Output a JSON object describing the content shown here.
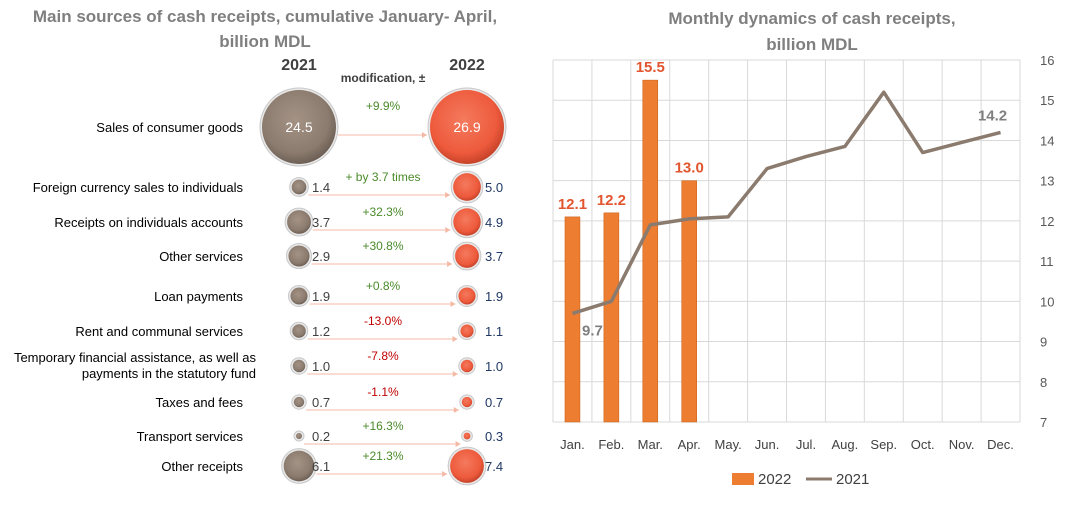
{
  "colors": {
    "grey_title": "#7f7f7f",
    "bubble_2021": "#8b7b6e",
    "bubble_2022": "#ee5a3c",
    "bar_2022": "#ed7d31",
    "line_2021": "#8b7b6e",
    "positive_change": "#4a8a2a",
    "negative_change": "#c00000",
    "value_2022_text": "#1f3864",
    "highlight_label": "#e2552f",
    "grid": "#d9d9d9"
  },
  "left": {
    "title_line1": "Main sources of cash receipts, cumulative January- April,",
    "title_line2": "billion MDL",
    "col_2021": "2021",
    "col_2022": "2022",
    "col_mod": "modification, ±",
    "rows": [
      {
        "label": [
          "Sales of consumer goods"
        ],
        "v2021": 24.5,
        "v2022": 26.9,
        "v2021_text": "24.5",
        "v2022_text": "26.9",
        "change": "+9.9%",
        "sign": "pos",
        "big": true
      },
      {
        "label": [
          "Foreign currency sales to individuals"
        ],
        "v2021": 1.4,
        "v2022": 5.0,
        "v2021_text": "1.4",
        "v2022_text": "5.0",
        "change": "+ by 3.7 times",
        "sign": "pos"
      },
      {
        "label": [
          "Receipts on individuals accounts"
        ],
        "v2021": 3.7,
        "v2022": 4.9,
        "v2021_text": "3.7",
        "v2022_text": "4.9",
        "change": "+32.3%",
        "sign": "pos"
      },
      {
        "label": [
          "Other services"
        ],
        "v2021": 2.9,
        "v2022": 3.7,
        "v2021_text": "2.9",
        "v2022_text": "3.7",
        "change": "+30.8%",
        "sign": "pos"
      },
      {
        "label": [
          "Loan payments"
        ],
        "v2021": 1.9,
        "v2022": 1.9,
        "v2021_text": "1.9",
        "v2022_text": "1.9",
        "change": "+0.8%",
        "sign": "pos"
      },
      {
        "label": [
          "Rent and communal services"
        ],
        "v2021": 1.2,
        "v2022": 1.1,
        "v2021_text": "1.2",
        "v2022_text": "1.1",
        "change": "-13.0%",
        "sign": "neg"
      },
      {
        "label": [
          "Temporary financial assistance, as well as",
          "payments in the statutory fund"
        ],
        "v2021": 1.0,
        "v2022": 1.0,
        "v2021_text": "1.0",
        "v2022_text": "1.0",
        "change": "-7.8%",
        "sign": "neg"
      },
      {
        "label": [
          "Taxes and fees"
        ],
        "v2021": 0.7,
        "v2022": 0.7,
        "v2021_text": "0.7",
        "v2022_text": "0.7",
        "change": "-1.1%",
        "sign": "neg"
      },
      {
        "label": [
          "Transport services"
        ],
        "v2021": 0.2,
        "v2022": 0.3,
        "v2021_text": "0.2",
        "v2022_text": "0.3",
        "change": "+16.3%",
        "sign": "pos"
      },
      {
        "label": [
          "Other receipts"
        ],
        "v2021": 6.1,
        "v2022": 7.4,
        "v2021_text": "6.1",
        "v2022_text": "7.4",
        "change": "+21.3%",
        "sign": "pos"
      }
    ]
  },
  "chart_data": {
    "type": "bar",
    "title": "Monthly dynamics of cash receipts, billion MDL",
    "title_line1": "Monthly dynamics of cash receipts,",
    "title_line2": "billion MDL",
    "categories": [
      "Jan.",
      "Feb.",
      "Mar.",
      "Apr.",
      "May.",
      "Jun.",
      "Jul.",
      "Aug.",
      "Sep.",
      "Oct.",
      "Nov.",
      "Dec."
    ],
    "series": [
      {
        "name": "2022",
        "type": "bar",
        "values": [
          12.1,
          12.2,
          15.5,
          13.0,
          null,
          null,
          null,
          null,
          null,
          null,
          null,
          null
        ],
        "labels": [
          "12.1",
          "12.2",
          "15.5",
          "13.0"
        ]
      },
      {
        "name": "2021",
        "type": "line",
        "values": [
          9.7,
          10.0,
          11.9,
          12.05,
          12.1,
          13.3,
          13.6,
          13.85,
          15.2,
          13.7,
          13.95,
          14.2
        ]
      }
    ],
    "line_labels": [
      {
        "index": 0,
        "text": "9.7"
      },
      {
        "index": 11,
        "text": "14.2"
      }
    ],
    "ylim": [
      7,
      16
    ],
    "yticks": [
      "7",
      "8",
      "9",
      "10",
      "11",
      "12",
      "13",
      "14",
      "15",
      "16"
    ],
    "y_axis_side": "right",
    "grid": true,
    "legend_position": "bottom"
  }
}
